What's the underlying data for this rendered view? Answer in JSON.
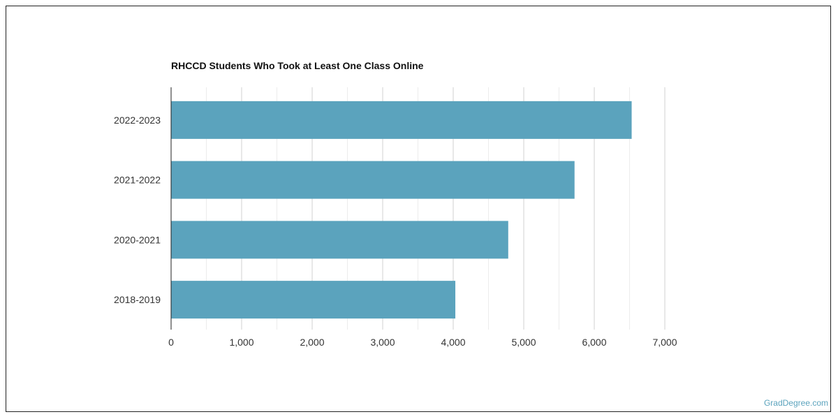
{
  "chart_data": {
    "type": "bar",
    "orientation": "horizontal",
    "title": "RHCCD Students Who Took at Least One Class Online",
    "categories": [
      "2022-2023",
      "2021-2022",
      "2020-2021",
      "2018-2019"
    ],
    "values": [
      6530,
      5720,
      4780,
      4030
    ],
    "xlim": [
      0,
      7000
    ],
    "x_ticks": [
      0,
      1000,
      2000,
      3000,
      4000,
      5000,
      6000,
      7000
    ],
    "x_tick_labels": [
      "0",
      "1,000",
      "2,000",
      "3,000",
      "4,000",
      "5,000",
      "6,000",
      "7,000"
    ],
    "xlabel": "",
    "ylabel": "",
    "grid": true,
    "bar_color": "#5ba3bd"
  },
  "watermark": "GradDegree.com"
}
